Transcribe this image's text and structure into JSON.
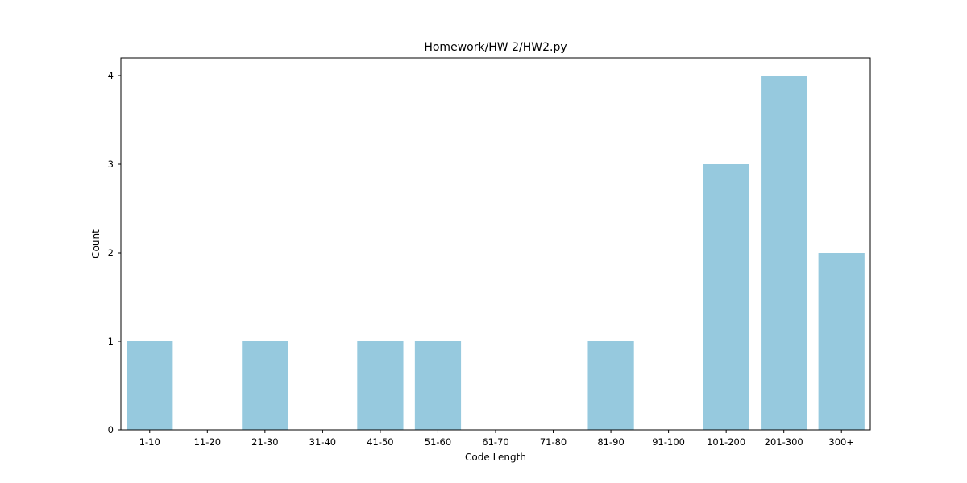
{
  "chart_data": {
    "type": "bar",
    "title": "Homework/HW 2/HW2.py",
    "xlabel": "Code Length",
    "ylabel": "Count",
    "categories": [
      "1-10",
      "11-20",
      "21-30",
      "31-40",
      "41-50",
      "51-60",
      "61-70",
      "71-80",
      "81-90",
      "91-100",
      "101-200",
      "201-300",
      "300+"
    ],
    "values": [
      1,
      0,
      1,
      0,
      1,
      1,
      0,
      0,
      1,
      0,
      3,
      4,
      2
    ],
    "ylim": [
      0,
      4.2
    ],
    "yticks": [
      0,
      1,
      2,
      3,
      4
    ],
    "grid": false,
    "bar_color": "#96c9de"
  }
}
